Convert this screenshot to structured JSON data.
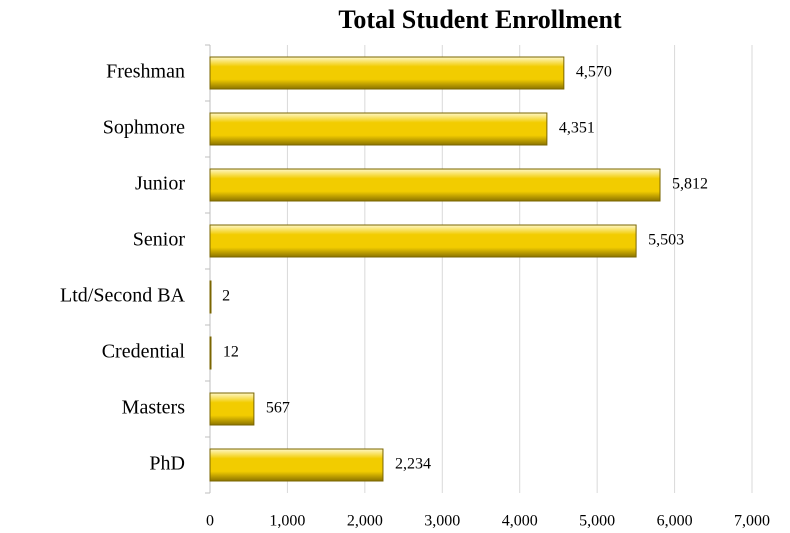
{
  "chart_data": {
    "type": "bar",
    "orientation": "horizontal",
    "title": "Total Student Enrollment",
    "categories": [
      "Freshman",
      "Sophmore",
      "Junior",
      "Senior",
      "Ltd/Second BA",
      "Credential",
      "Masters",
      "PhD"
    ],
    "values": [
      4570,
      4351,
      5812,
      5503,
      2,
      12,
      567,
      2234
    ],
    "value_labels": [
      "4,570",
      "4,351",
      "5,812",
      "5,503",
      "2",
      "12",
      "567",
      "2,234"
    ],
    "color": "#f2cc00",
    "xlim": [
      0,
      7000
    ],
    "xticks": [
      0,
      {
        "value": 1000,
        "label": "1,000"
      },
      {
        "value": 2000,
        "label": "2,000"
      },
      {
        "value": 3000,
        "label": "3,000"
      },
      {
        "value": 4000,
        "label": "4,000"
      },
      {
        "value": 5000,
        "label": "5,000"
      },
      {
        "value": 6000,
        "label": "6,000"
      },
      {
        "value": 7000,
        "label": "7,000"
      }
    ],
    "grid": true
  }
}
